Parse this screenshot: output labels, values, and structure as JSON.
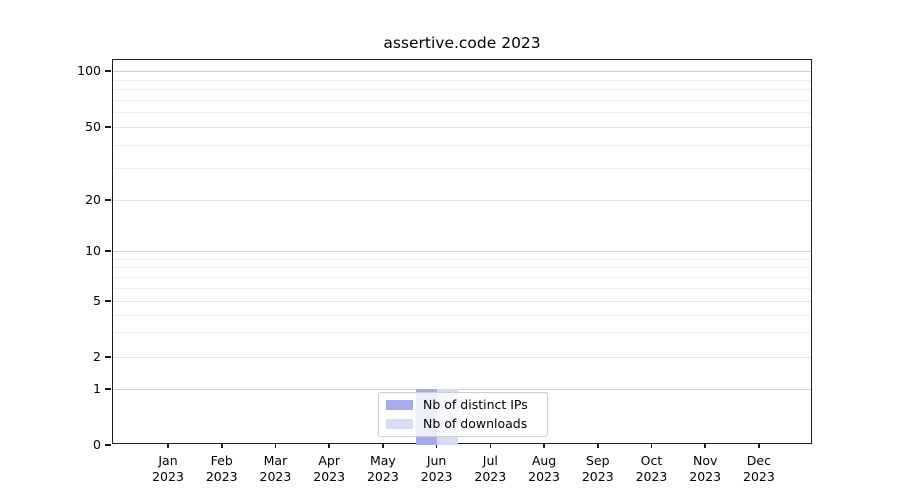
{
  "chart_data": {
    "type": "bar",
    "title": "assertive.code 2023",
    "categories": [
      "Jan 2023",
      "Feb 2023",
      "Mar 2023",
      "Apr 2023",
      "May 2023",
      "Jun 2023",
      "Jul 2023",
      "Aug 2023",
      "Sep 2023",
      "Oct 2023",
      "Nov 2023",
      "Dec 2023"
    ],
    "series": [
      {
        "name": "Nb of distinct IPs",
        "color": "#a5acee",
        "values": [
          0,
          0,
          0,
          0,
          0,
          1,
          0,
          0,
          0,
          0,
          0,
          0
        ]
      },
      {
        "name": "Nb of downloads",
        "color": "#d8dbf7",
        "values": [
          0,
          0,
          0,
          0,
          0,
          1,
          0,
          0,
          0,
          0,
          0,
          0
        ]
      }
    ],
    "xlabel": "",
    "ylabel": "",
    "yscale": "symlog",
    "yticks": [
      0,
      1,
      2,
      5,
      10,
      20,
      50,
      100
    ],
    "ylim": [
      0,
      110
    ],
    "grid": true,
    "legend_position": "lower center",
    "colors": {
      "decade_gridline": "#cccccc",
      "major_gridline": "#e4e4e4",
      "minor_gridline": "#efefef",
      "spine": "#1c1c1c",
      "text": "#000000",
      "legend_border": "#cccccc"
    }
  }
}
